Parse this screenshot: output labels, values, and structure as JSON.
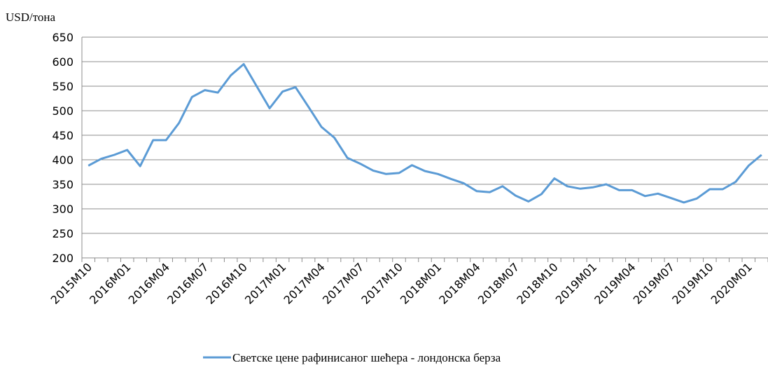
{
  "chart_data": {
    "type": "line",
    "y_label": "USD/тона",
    "categories": [
      "2015M10",
      null,
      null,
      "2016M01",
      null,
      null,
      "2016M04",
      null,
      null,
      "2016M07",
      null,
      null,
      "2016M10",
      null,
      null,
      "2017M01",
      null,
      null,
      "2017M04",
      null,
      null,
      "2017M07",
      null,
      null,
      "2017M10",
      null,
      null,
      "2018M01",
      null,
      null,
      "2018M04",
      null,
      null,
      "2018M07",
      null,
      null,
      "2018M10",
      null,
      null,
      "2019M01",
      null,
      null,
      "2019M04",
      null,
      null,
      "2019M07",
      null,
      null,
      "2019M10",
      null,
      null,
      "2020M01",
      null
    ],
    "series": [
      {
        "name": "Светске цене рафинисаног шећера - лондонска берза",
        "color": "#5b9bd5",
        "values": [
          388,
          402,
          410,
          420,
          387,
          440,
          440,
          475,
          528,
          542,
          537,
          572,
          595,
          550,
          505,
          539,
          548,
          508,
          467,
          445,
          404,
          392,
          378,
          371,
          373,
          389,
          377,
          371,
          361,
          352,
          336,
          334,
          346,
          327,
          315,
          330,
          362,
          346,
          341,
          344,
          350,
          338,
          338,
          326,
          331,
          322,
          313,
          321,
          340,
          340,
          355,
          388,
          410
        ]
      }
    ],
    "ylim": [
      200,
      650
    ],
    "yticks": [
      200,
      250,
      300,
      350,
      400,
      450,
      500,
      550,
      600,
      650
    ],
    "grid": true,
    "legend": "bottom"
  }
}
